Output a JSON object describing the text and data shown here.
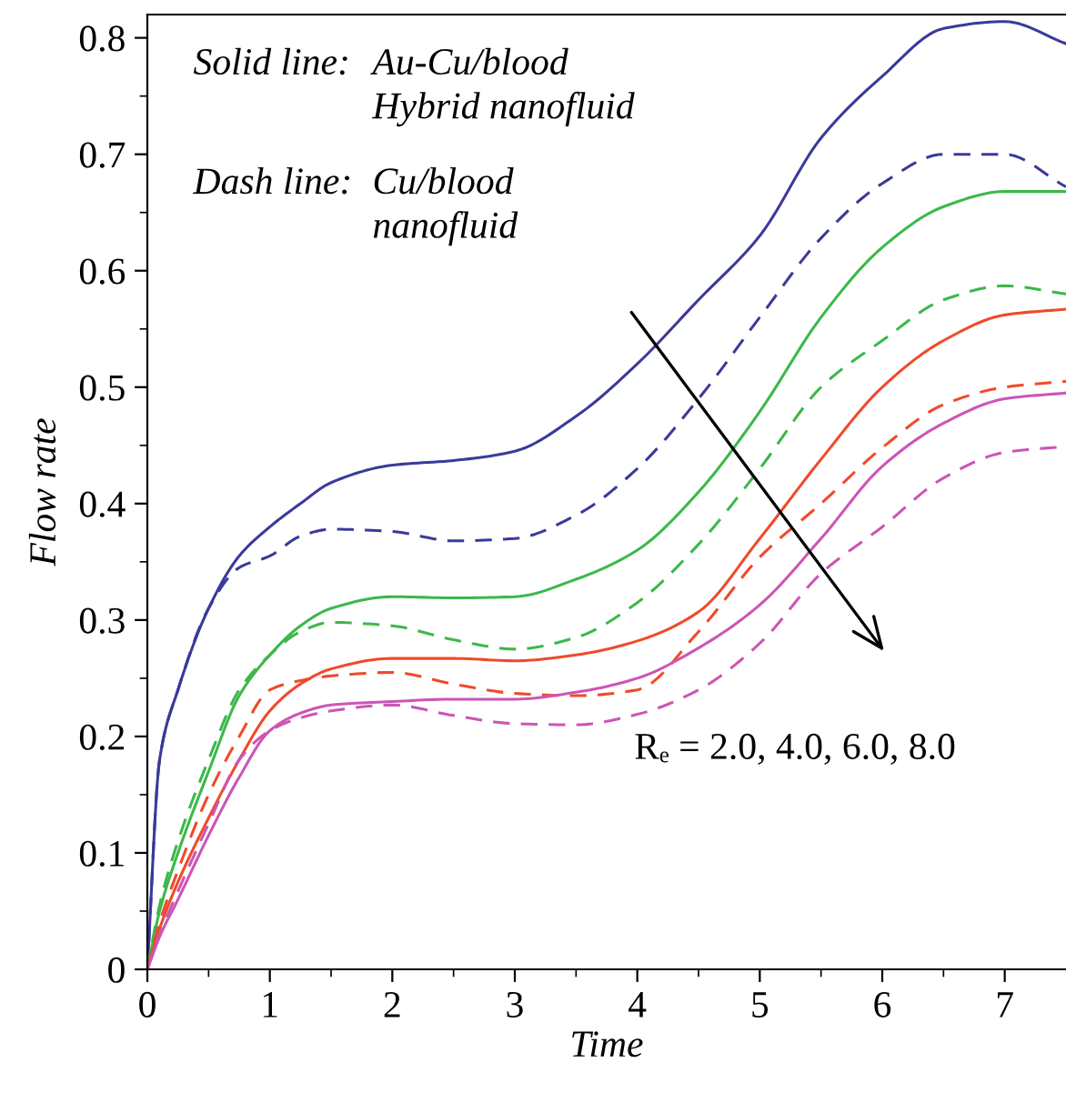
{
  "chart_data": {
    "type": "line",
    "xlabel": "Time",
    "ylabel": "Flow rate",
    "xlim": [
      0,
      7.5
    ],
    "ylim": [
      0,
      0.82
    ],
    "xticks": [
      0,
      {
        "value": 0.5,
        "label": null
      },
      1,
      {
        "value": 1.5,
        "label": null
      },
      2,
      {
        "value": 2.5,
        "label": null
      },
      3,
      {
        "value": 3.5,
        "label": null
      },
      4,
      {
        "value": 4.5,
        "label": null
      },
      5,
      {
        "value": 5.5,
        "label": null
      },
      6,
      {
        "value": 6.5,
        "label": null
      },
      7
    ],
    "yticks": [
      0,
      {
        "value": 0.05,
        "label": null
      },
      0.1,
      {
        "value": 0.15,
        "label": null
      },
      0.2,
      {
        "value": 0.25,
        "label": null
      },
      0.3,
      {
        "value": 0.35,
        "label": null
      },
      0.4,
      {
        "value": 0.45,
        "label": null
      },
      0.5,
      {
        "value": 0.55,
        "label": null
      },
      0.6,
      {
        "value": 0.65,
        "label": null
      },
      0.7,
      {
        "value": 0.75,
        "label": null
      },
      0.8
    ],
    "grid": false,
    "legend": false,
    "x": [
      0,
      0.1,
      0.25,
      0.5,
      0.75,
      1,
      1.25,
      1.5,
      2,
      2.5,
      3,
      3.5,
      4,
      4.5,
      5,
      5.5,
      6,
      6.5,
      7,
      7.5
    ],
    "series": [
      {
        "color": "#3a3a9a",
        "line_style": "solid",
        "values": [
          0,
          0.18,
          0.24,
          0.31,
          0.355,
          0.38,
          0.4,
          0.418,
          0.433,
          0.437,
          0.445,
          0.475,
          0.52,
          0.575,
          0.63,
          0.714,
          0.767,
          0.808,
          0.814,
          0.795
        ]
      },
      {
        "color": "#3a3a9a",
        "line_style": "dashed",
        "values": [
          0,
          0.18,
          0.24,
          0.31,
          0.345,
          0.355,
          0.372,
          0.378,
          0.376,
          0.368,
          0.37,
          0.39,
          0.43,
          0.49,
          0.56,
          0.628,
          0.675,
          0.7,
          0.7,
          0.672
        ]
      },
      {
        "color": "#3cb84a",
        "line_style": "solid",
        "values": [
          0,
          0.05,
          0.1,
          0.17,
          0.235,
          0.27,
          0.295,
          0.31,
          0.32,
          0.319,
          0.32,
          0.335,
          0.36,
          0.41,
          0.479,
          0.56,
          0.62,
          0.655,
          0.668,
          0.668
        ]
      },
      {
        "color": "#3cb84a",
        "line_style": "dashed",
        "values": [
          0,
          0.055,
          0.11,
          0.18,
          0.24,
          0.27,
          0.29,
          0.298,
          0.295,
          0.283,
          0.275,
          0.285,
          0.315,
          0.365,
          0.43,
          0.5,
          0.54,
          0.575,
          0.587,
          0.58
        ]
      },
      {
        "color": "#f04a2a",
        "line_style": "solid",
        "values": [
          0,
          0.035,
          0.075,
          0.13,
          0.18,
          0.222,
          0.245,
          0.258,
          0.267,
          0.267,
          0.265,
          0.27,
          0.282,
          0.307,
          0.37,
          0.438,
          0.5,
          0.54,
          0.562,
          0.567
        ]
      },
      {
        "color": "#f04a2a",
        "line_style": "dashed",
        "values": [
          0,
          0.04,
          0.085,
          0.15,
          0.2,
          0.24,
          0.248,
          0.252,
          0.255,
          0.245,
          0.237,
          0.235,
          0.24,
          0.29,
          0.354,
          0.4,
          0.448,
          0.485,
          0.5,
          0.505
        ]
      },
      {
        "color": "#cc55b5",
        "line_style": "solid",
        "values": [
          0,
          0.028,
          0.06,
          0.115,
          0.165,
          0.205,
          0.22,
          0.227,
          0.23,
          0.232,
          0.232,
          0.238,
          0.25,
          0.276,
          0.313,
          0.37,
          0.432,
          0.469,
          0.49,
          0.495
        ]
      },
      {
        "color": "#cc55b5",
        "line_style": "dashed",
        "values": [
          0,
          0.03,
          0.067,
          0.125,
          0.18,
          0.205,
          0.216,
          0.222,
          0.227,
          0.218,
          0.211,
          0.21,
          0.219,
          0.24,
          0.28,
          0.34,
          0.38,
          0.422,
          0.444,
          0.449
        ]
      }
    ],
    "annotations": [
      "Solid line:",
      "Au-Cu/blood\nHybrid nanofluid",
      "Dash line:",
      "Cu/blood\nnanofluid",
      "Rₑ = 2.0, 4.0, 6.0, 8.0"
    ]
  }
}
